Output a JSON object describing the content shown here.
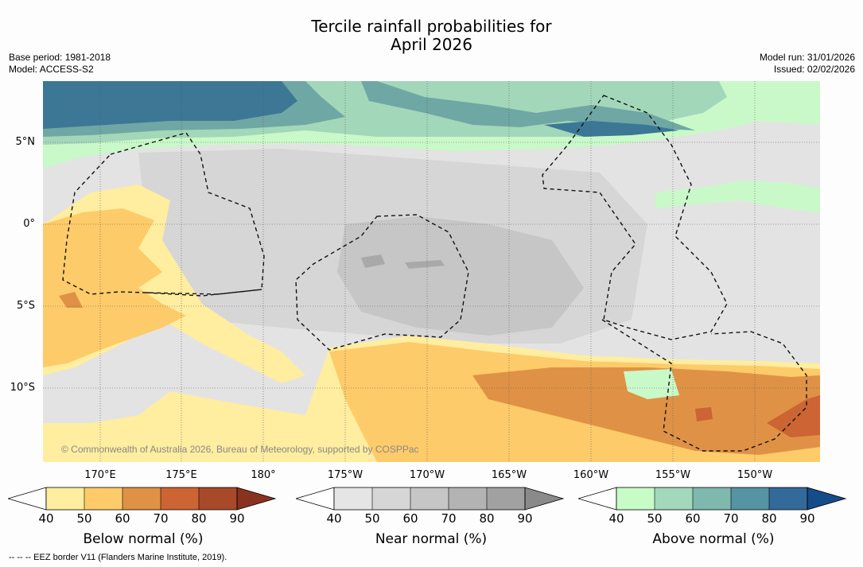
{
  "title_line1": "Tercile rainfall probabilities for",
  "title_line2": "April 2026",
  "meta_left": {
    "base_period": "Base period: 1981-2018",
    "model": "Model: ACCESS-S2"
  },
  "meta_right": {
    "model_run": "Model run: 31/01/2026",
    "issued": "Issued: 02/02/2026"
  },
  "lat_labels": [
    "5°N",
    "0°",
    "5°S",
    "10°S"
  ],
  "lon_labels": [
    "170°E",
    "175°E",
    "180°",
    "175°W",
    "170°W",
    "165°W",
    "160°W",
    "155°W",
    "150°W"
  ],
  "credit": "© Commonwealth of Australia 2026, Bureau of Meteorology, supported by COSPPac",
  "footer": "-- -- -- EEZ border V11 (Flanders Marine Institute, 2019).",
  "colorbars": {
    "below": {
      "label": "Below normal (%)",
      "ticks": [
        "40",
        "50",
        "60",
        "70",
        "80",
        "90"
      ],
      "colors": [
        "#ffeda0",
        "#fdcb69",
        "#df9245",
        "#cc6433",
        "#a84a2a",
        "#8a3220"
      ]
    },
    "near": {
      "label": "Near normal (%)",
      "ticks": [
        "40",
        "50",
        "60",
        "70",
        "80",
        "90"
      ],
      "colors": [
        "#e5e5e5",
        "#d6d6d6",
        "#c6c6c6",
        "#b3b3b3",
        "#a1a1a1",
        "#8a8a8a"
      ]
    },
    "above": {
      "label": "Above normal (%)",
      "ticks": [
        "40",
        "50",
        "60",
        "70",
        "80",
        "90"
      ],
      "colors": [
        "#c7fcc7",
        "#a3d8bc",
        "#7fb9ad",
        "#5693a3",
        "#336a9a",
        "#154c8a"
      ]
    }
  }
}
